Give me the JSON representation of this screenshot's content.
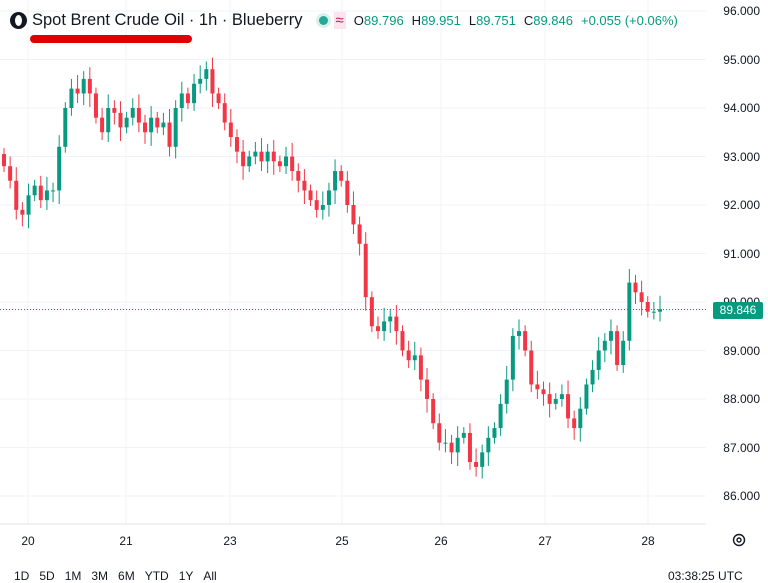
{
  "header": {
    "title": "Spot Brent Crude Oil · 1h · Blueberry",
    "open_label": "O",
    "open": "89.796",
    "high_label": "H",
    "high": "89.951",
    "low_label": "L",
    "low": "89.751",
    "close_label": "C",
    "close": "89.846",
    "change": "+0.055 (+0.06%)",
    "symbol_icon": "blueberry-logo-icon",
    "status_icon": "market-open-dot-icon",
    "indicator_icon": "wave-icon"
  },
  "price_tag": "89.846",
  "range_buttons": [
    "1D",
    "5D",
    "1M",
    "3M",
    "6M",
    "YTD",
    "1Y",
    "All"
  ],
  "clock": "03:38:25 UTC",
  "colors": {
    "up": "#089981",
    "down": "#f23645",
    "annotation": "#e00000",
    "grid": "#f0f3fa"
  },
  "chart_data": {
    "type": "candlestick",
    "y_ticks": [
      "96.000",
      "95.000",
      "94.000",
      "93.000",
      "92.000",
      "91.000",
      "90.000",
      "89.000",
      "88.000",
      "87.000",
      "86.000"
    ],
    "x_ticks": [
      "20",
      "21",
      "23",
      "25",
      "26",
      "27",
      "28"
    ],
    "ylim": [
      85.7,
      96.2
    ],
    "grid": true,
    "last_price": 89.846,
    "closes": [
      92.8,
      92.5,
      91.9,
      91.8,
      92.2,
      92.4,
      92.1,
      92.3,
      92.3,
      93.2,
      94.0,
      94.4,
      94.3,
      94.6,
      94.3,
      93.8,
      93.5,
      94.0,
      93.9,
      93.6,
      93.8,
      94.0,
      93.7,
      93.5,
      93.8,
      93.6,
      93.7,
      93.2,
      94.0,
      94.3,
      94.1,
      94.5,
      94.6,
      94.8,
      94.3,
      94.1,
      93.7,
      93.4,
      93.1,
      92.8,
      93.0,
      93.1,
      92.9,
      93.1,
      92.9,
      92.8,
      93.0,
      92.7,
      92.5,
      92.3,
      92.1,
      91.9,
      92.0,
      92.3,
      92.7,
      92.5,
      92.0,
      91.6,
      91.2,
      90.1,
      89.5,
      89.4,
      89.6,
      89.7,
      89.4,
      89.0,
      88.8,
      88.9,
      88.4,
      88.0,
      87.5,
      87.1,
      87.1,
      86.9,
      87.2,
      87.3,
      86.7,
      86.6,
      86.9,
      87.2,
      87.4,
      87.9,
      88.4,
      89.3,
      89.4,
      89.0,
      88.3,
      88.2,
      88.1,
      87.9,
      88.0,
      88.1,
      87.6,
      87.4,
      87.8,
      88.3,
      88.6,
      89.0,
      89.2,
      89.4,
      88.7,
      89.2,
      90.4,
      90.2,
      90.0,
      89.8,
      89.8,
      89.85
    ]
  }
}
